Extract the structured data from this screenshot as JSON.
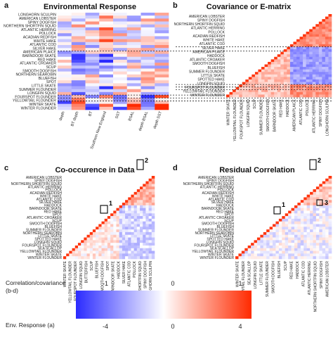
{
  "panels": {
    "a": {
      "letter": "a",
      "title": "Environmental Response"
    },
    "b": {
      "letter": "b",
      "title": "Covariance or E-matrix"
    },
    "c": {
      "letter": "c",
      "title": "Co-occurence in Data"
    },
    "d": {
      "letter": "d",
      "title": "Residual Correlation"
    }
  },
  "legend": {
    "corr_label_line1": "Correlation/covariance",
    "corr_label_line2": "(b-d)",
    "env_label": "Env. Response (a)",
    "corr_ticks": [
      "-1",
      "0",
      "1"
    ],
    "env_ticks": [
      "-4",
      "0",
      "4"
    ],
    "colors": {
      "low": "#2b2bff",
      "mid": "#ffffff",
      "high": "#ff2a00"
    }
  },
  "boxes": {
    "c": [
      "1",
      "2"
    ],
    "d": [
      "1",
      "2",
      "3"
    ]
  },
  "chart_data": [
    {
      "type": "heatmap",
      "panel": "a",
      "title": "Environmental Response",
      "y_labels_visible": [
        "LONGHORN SCULPIN",
        "AMERICAN LOBSTER",
        "SPINY DOGFISH",
        "NORTHERN SHORTFIN SQUID",
        "ATLANTIC HERRING",
        "POLLOCK",
        "ACADIAN REDFISH",
        "WHITE HAKE",
        "ATLANTIC COD",
        "SILVER HAKE",
        "AMERICAN PLAICE",
        "BARNDOOR SKATE",
        "RED HAKE",
        "ATLANTIC CROAKER",
        "SCUP",
        "SMOOTH DOGFISH",
        "NORTHERN SEAROBIN",
        "BLUEFISH",
        "SPOT",
        "LITTLE SKATE",
        "SUMMER FLOUNDER",
        "LONGFIN SQUID",
        "FOURSPOT FLOUNDER",
        "YELLOWTAIL FLOUNDER",
        "WINTER SKATE",
        "WINTER FLOUNDER"
      ],
      "x_labels": [
        "depth",
        "BT depth",
        "BT",
        "Southern New England",
        "SST",
        "BSAL",
        "depth BSAL",
        "depth SST"
      ],
      "group_breaks_after_row": [
        13,
        28,
        29,
        30
      ],
      "value_range": [
        -4,
        4
      ]
    },
    {
      "type": "heatmap",
      "panel": "b",
      "title": "Covariance or E-matrix",
      "y_labels_visible": [
        "AMERICAN LOBSTER",
        "SPINY DOGFISH",
        "NORTHERN SHORTFIN SQUID",
        "ATLANTIC HERRING",
        "POLLOCK",
        "ACADIAN REDFISH",
        "WHITE HAKE",
        "ATLANTIC COD",
        "SILVER HAKE",
        "AMERICAN PLAICE",
        "HADDOCK",
        "ATLANTIC CROAKER",
        "SMOOTH DOGFISH",
        "BLUEFISH",
        "SUMMER FLOUNDER",
        "LITTLE SKATE",
        "SPOTTED HAKE",
        "LONGFIN SQUID",
        "FOURSPOT FLOUNDER",
        "YELLOWTAIL FLOUNDER",
        "WINTER FLOUNDER"
      ],
      "x_labels_visible": [
        "WINTER SKATE",
        "YELLOWTAIL FLOUNDER",
        "FOURSPOT FLOUNDER",
        "LONGFIN SQUID",
        "SCUP",
        "SUMMER FLOUNDER",
        "SMOOTH DOGFISH",
        "BARNDOOR SKATE",
        "RED HAKE",
        "HADDOCK",
        "AMERICAN PLAICE",
        "ATLANTIC COD",
        "POLLOCK",
        "ATLANTIC HERRING",
        "SPINY DOGFISH",
        "LONGHORN SCULPIN"
      ],
      "value_range": [
        -1,
        1
      ]
    },
    {
      "type": "heatmap",
      "panel": "c",
      "title": "Co-occurence in Data",
      "y_labels_visible": [
        "AMERICAN LOBSTER",
        "SPINY DOGFISH",
        "NORTHERN SHORTFIN SQUID",
        "ATLANTIC HERRING",
        "POLLOCK",
        "ACADIAN REDFISH",
        "WHITE HAKE",
        "ATLANTIC COD",
        "SILVER HAKE",
        "HADDOCK",
        "BARNDOOR SKATE",
        "RED HAKE",
        "SPOT",
        "ATLANTIC CROAKER",
        "SCUP",
        "SMOOTH DOGFISH",
        "BLUEFISH",
        "SUMMER FLOUNDER",
        "NORTHERN SEAROBIN",
        "LITTLE SKATE",
        "SPOTTED HAKE",
        "LONGFIN SQUID",
        "FOURSPOT FLOUNDER",
        "SEA SCALLOP",
        "YELLOWTAIL FLOUNDER",
        "WINTER SKATE",
        "WINTER FLOUNDER"
      ],
      "x_labels_visible": [
        "WINTER SKATE",
        "YELLOWTAIL FLOUNDER",
        "FOURSPOT FLOUNDER",
        "LONGFIN SQUID",
        "BUTTERFISH",
        "SCUP",
        "BLUEFISH",
        "SMOOTH DOGFISH",
        "SPOT",
        "BARNDOOR SKATE",
        "HADDOCK",
        "SILVER HAKE",
        "ATLANTIC COD",
        "POLLOCK",
        "NORTHERN SHORTFIN SQUID",
        "SPINY DOGFISH",
        "LONGHORN SCULPIN"
      ],
      "value_range": [
        -1,
        1
      ]
    },
    {
      "type": "heatmap",
      "panel": "d",
      "title": "Residual Correlation",
      "y_labels_visible": [
        "AMERICAN LOBSTER",
        "SPINY DOGFISH",
        "NORTHERN SHORTFIN SQUID",
        "ATLANTIC HERRING",
        "POLLOCK",
        "ACADIAN REDFISH",
        "WHITE HAKE",
        "ATLANTIC COD",
        "SILVER HAKE",
        "HADDOCK",
        "BARNDOOR SKATE",
        "RED HAKE",
        "SPOT",
        "ATLANTIC CROAKER",
        "SCUP",
        "SMOOTH DOGFISH",
        "BLUEFISH",
        "SUMMER FLOUNDER",
        "NORTHERN SEAROBIN",
        "LITTLE SKATE",
        "SPOTTED HAKE",
        "LONGFIN SQUID",
        "FOURSPOT FLOUNDER",
        "SEA SCALLOP",
        "YELLOWTAIL FLOUNDER",
        "WINTER SKATE",
        "WINTER FLOUNDER"
      ],
      "x_labels_visible": [
        "WINTER SKATE",
        "YELLOWTAIL FLOUNDER",
        "SEA SCALLOP",
        "LONGFIN SQUID",
        "LITTLE SKATE",
        "SUMMER FLOUNDER",
        "SMOOTH DOGFISH",
        "BLUEFISH",
        "SCUP",
        "RED HAKE",
        "HADDOCK",
        "ATLANTIC COD",
        "ATLANTIC HERRING",
        "NORTHERN SHORTFIN SQUID",
        "SPINY DOGFISH",
        "AMERICAN LOBSTER"
      ],
      "value_range": [
        -1,
        1
      ]
    }
  ]
}
